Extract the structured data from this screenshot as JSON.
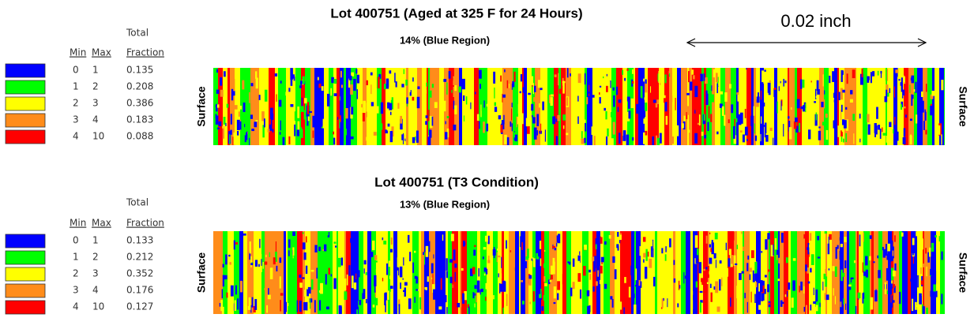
{
  "scale_bar": {
    "label": "0.02 inch"
  },
  "panels": [
    {
      "title": "Lot 400751 (Aged at 325  F for 24 Hours)",
      "subtitle": "14%  (Blue Region)",
      "legend": {
        "header_total": "Total",
        "columns": [
          "Min",
          "Max",
          "Fraction"
        ],
        "rows": [
          {
            "color": "#0000ff",
            "min": 0,
            "max": 1,
            "fraction": 0.135
          },
          {
            "color": "#00ff00",
            "min": 1,
            "max": 2,
            "fraction": 0.208
          },
          {
            "color": "#ffff00",
            "min": 2,
            "max": 3,
            "fraction": 0.386
          },
          {
            "color": "#ff8c1a",
            "min": 3,
            "max": 4,
            "fraction": 0.183
          },
          {
            "color": "#ff0000",
            "min": 4,
            "max": 10,
            "fraction": 0.088
          }
        ]
      },
      "left_label": "Surface",
      "right_label": "Surface"
    },
    {
      "title": "Lot 400751 (T3 Condition)",
      "subtitle": "13%  (Blue Region)",
      "legend": {
        "header_total": "Total",
        "columns": [
          "Min",
          "Max",
          "Fraction"
        ],
        "rows": [
          {
            "color": "#0000ff",
            "min": 0,
            "max": 1,
            "fraction": 0.133
          },
          {
            "color": "#00ff00",
            "min": 1,
            "max": 2,
            "fraction": 0.212
          },
          {
            "color": "#ffff00",
            "min": 2,
            "max": 3,
            "fraction": 0.352
          },
          {
            "color": "#ff8c1a",
            "min": 3,
            "max": 4,
            "fraction": 0.176
          },
          {
            "color": "#ff0000",
            "min": 4,
            "max": 10,
            "fraction": 0.127
          }
        ]
      },
      "left_label": "Surface",
      "right_label": "Surface"
    }
  ]
}
